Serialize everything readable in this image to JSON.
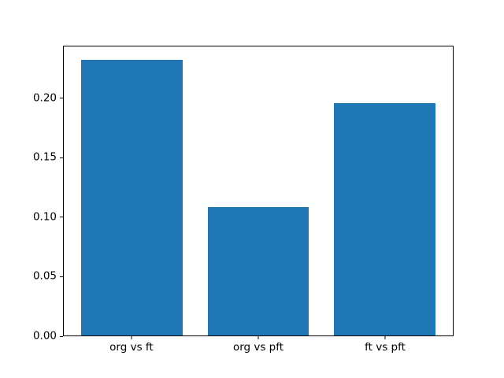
{
  "figure": {
    "background_color": "#ffffff",
    "frame_color": "#000000",
    "text_color": "#000000"
  },
  "chart_data": {
    "type": "bar",
    "title": "",
    "xlabel": "",
    "ylabel": "",
    "categories": [
      "org vs ft",
      "org vs pft",
      "ft vs pft"
    ],
    "x": [
      0,
      1,
      2
    ],
    "values": [
      0.2325,
      0.1085,
      0.1965
    ],
    "bar_color": "#1f77b4",
    "bar_width": 0.8,
    "xlim": [
      -0.54,
      2.54
    ],
    "ylim": [
      0,
      0.2441
    ],
    "yticks": [
      0,
      0.05,
      0.1,
      0.15,
      0.2
    ],
    "ytick_labels": [
      "0.00",
      "0.05",
      "0.10",
      "0.15",
      "0.20"
    ],
    "grid": false,
    "legend": null
  }
}
